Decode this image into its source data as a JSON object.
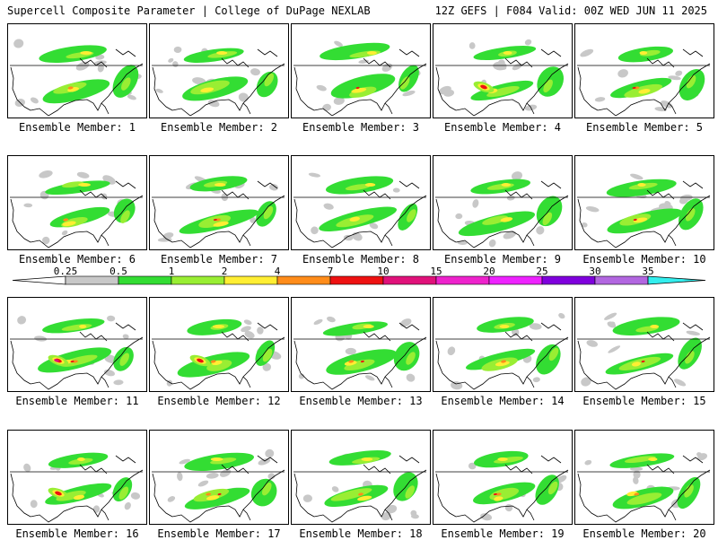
{
  "header": {
    "left": "Supercell Composite Parameter | College of DuPage NEXLAB",
    "right": "12Z GEFS | F084 Valid: 00Z WED JUN 11 2025"
  },
  "colorbar": {
    "ticks": [
      "0.25",
      "0.5",
      "1",
      "2",
      "4",
      "7",
      "10",
      "15",
      "20",
      "25",
      "30",
      "35"
    ],
    "colors": [
      "#c8c8c8",
      "#33dd33",
      "#99ee33",
      "#ffee33",
      "#ff8c1a",
      "#ee1111",
      "#e0117a",
      "#ee22cc",
      "#ee22ff",
      "#7f00dd",
      "#b266e0",
      "#33eeee"
    ],
    "below_min_color": "#ffffff"
  },
  "members": [
    {
      "label": "Ensemble Member: 1"
    },
    {
      "label": "Ensemble Member: 2"
    },
    {
      "label": "Ensemble Member: 3"
    },
    {
      "label": "Ensemble Member: 4"
    },
    {
      "label": "Ensemble Member: 5"
    },
    {
      "label": "Ensemble Member: 6"
    },
    {
      "label": "Ensemble Member: 7"
    },
    {
      "label": "Ensemble Member: 8"
    },
    {
      "label": "Ensemble Member: 9"
    },
    {
      "label": "Ensemble Member: 10"
    },
    {
      "label": "Ensemble Member: 11"
    },
    {
      "label": "Ensemble Member: 12"
    },
    {
      "label": "Ensemble Member: 13"
    },
    {
      "label": "Ensemble Member: 14"
    },
    {
      "label": "Ensemble Member: 15"
    },
    {
      "label": "Ensemble Member: 16"
    },
    {
      "label": "Ensemble Member: 17"
    },
    {
      "label": "Ensemble Member: 18"
    },
    {
      "label": "Ensemble Member: 19"
    },
    {
      "label": "Ensemble Member: 20"
    }
  ]
}
